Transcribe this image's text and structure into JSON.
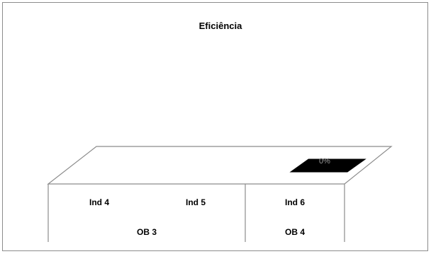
{
  "chart_data": {
    "type": "bar",
    "title": "Eficiência",
    "categories": [
      "Ind  4",
      "Ind 5",
      "Ind 6"
    ],
    "groups": [
      {
        "label": "OB 3",
        "categories": [
          "Ind  4",
          "Ind 5"
        ]
      },
      {
        "label": "OB 4",
        "categories": [
          "Ind 6"
        ]
      }
    ],
    "series": [
      {
        "values": [
          null,
          null,
          0
        ]
      }
    ],
    "data_labels": [
      "",
      "",
      "0%"
    ],
    "bar_color": "#000000",
    "floor_color": "#ffffff",
    "edge_color": "#8c8c8c",
    "legend": "none",
    "grid": false
  }
}
